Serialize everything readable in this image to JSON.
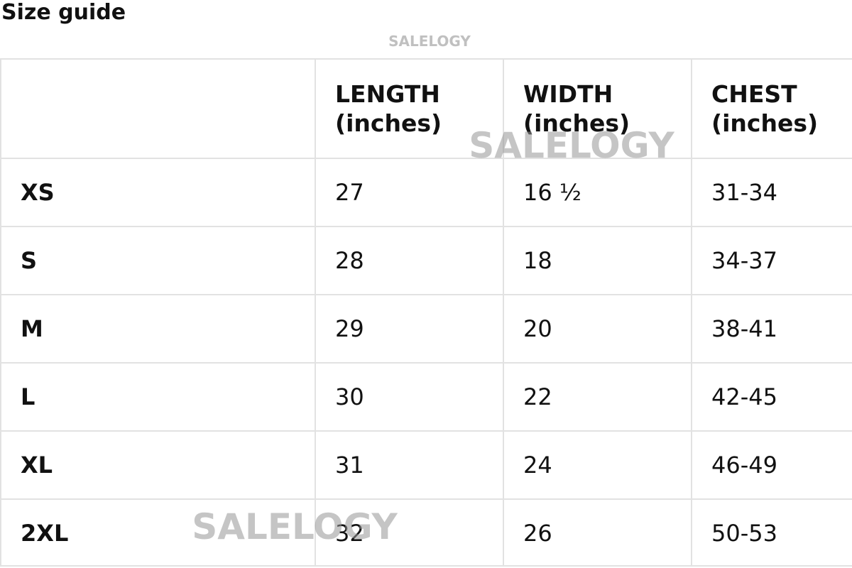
{
  "header": {
    "title": "Size guide"
  },
  "watermarks": [
    "SALELOGY",
    "SALELOGY",
    "SALELOGY"
  ],
  "table": {
    "columns": [
      "LENGTH\n(inches)",
      "WIDTH\n(inches)",
      "CHEST\n(inches)"
    ],
    "rows": [
      [
        "XS",
        "27",
        "16 ½",
        "31-34"
      ],
      [
        "S",
        "28",
        "18",
        "34-37"
      ],
      [
        "M",
        "29",
        "20",
        "38-41"
      ],
      [
        "L",
        "30",
        "22",
        "42-45"
      ],
      [
        "XL",
        "31",
        "24",
        "46-49"
      ],
      [
        "2XL",
        "32",
        "26",
        "50-53"
      ]
    ]
  }
}
